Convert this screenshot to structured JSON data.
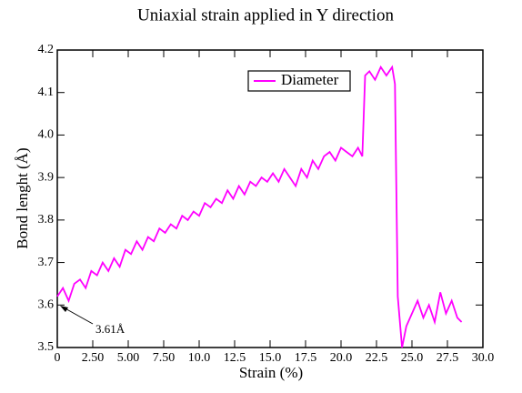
{
  "chart_data": {
    "type": "line",
    "title": "Uniaxial strain applied in Y direction",
    "x_label": "Strain (%)",
    "y_label": "Bond lenght (Å)",
    "annotation": "3.61Å",
    "legend": "top-center",
    "grid": false,
    "x": [
      0,
      0.4,
      0.8,
      1.2,
      1.6,
      2.0,
      2.4,
      2.8,
      3.2,
      3.6,
      4.0,
      4.4,
      4.8,
      5.2,
      5.6,
      6.0,
      6.4,
      6.8,
      7.2,
      7.6,
      8.0,
      8.4,
      8.8,
      9.2,
      9.6,
      10.0,
      10.4,
      10.8,
      11.2,
      11.6,
      12.0,
      12.4,
      12.8,
      13.2,
      13.6,
      14.0,
      14.4,
      14.8,
      15.2,
      15.6,
      16.0,
      16.4,
      16.8,
      17.2,
      17.6,
      18.0,
      18.4,
      18.8,
      19.2,
      19.6,
      20.0,
      20.4,
      20.8,
      21.2,
      21.5,
      21.7,
      22.0,
      22.4,
      22.8,
      23.2,
      23.6,
      23.8,
      24.0,
      24.3,
      24.6,
      25.0,
      25.4,
      25.8,
      26.2,
      26.6,
      27.0,
      27.4,
      27.8,
      28.2,
      28.5
    ],
    "series": [
      {
        "name": "Diameter",
        "color": "#ff00ff",
        "values": [
          3.62,
          3.64,
          3.61,
          3.65,
          3.66,
          3.64,
          3.68,
          3.67,
          3.7,
          3.68,
          3.71,
          3.69,
          3.73,
          3.72,
          3.75,
          3.73,
          3.76,
          3.75,
          3.78,
          3.77,
          3.79,
          3.78,
          3.81,
          3.8,
          3.82,
          3.81,
          3.84,
          3.83,
          3.85,
          3.84,
          3.87,
          3.85,
          3.88,
          3.86,
          3.89,
          3.88,
          3.9,
          3.89,
          3.91,
          3.89,
          3.92,
          3.9,
          3.88,
          3.92,
          3.9,
          3.94,
          3.92,
          3.95,
          3.96,
          3.94,
          3.97,
          3.96,
          3.95,
          3.97,
          3.95,
          4.14,
          4.15,
          4.13,
          4.16,
          4.14,
          4.16,
          4.12,
          3.62,
          3.5,
          3.55,
          3.58,
          3.61,
          3.57,
          3.6,
          3.56,
          3.63,
          3.58,
          3.61,
          3.57,
          3.56
        ]
      }
    ],
    "xlim": [
      0,
      30
    ],
    "xticks": [
      0,
      {
        "value": 2.5,
        "label": "2.50"
      },
      {
        "value": 5,
        "label": "5.00"
      },
      {
        "value": 7.5,
        "label": "7.50"
      },
      {
        "value": 10,
        "label": "10.0"
      },
      12.5,
      {
        "value": 15,
        "label": "15.0"
      },
      17.5,
      {
        "value": 20,
        "label": "20.0"
      },
      22.5,
      {
        "value": 25,
        "label": "25.0"
      },
      27.5,
      {
        "value": 30,
        "label": "30.0"
      }
    ],
    "ylim": [
      3.5,
      4.2
    ],
    "yticks": [
      3.5,
      3.6,
      3.7,
      3.8,
      3.9,
      {
        "value": 4,
        "label": "4.0"
      },
      4.1,
      4.2
    ]
  }
}
